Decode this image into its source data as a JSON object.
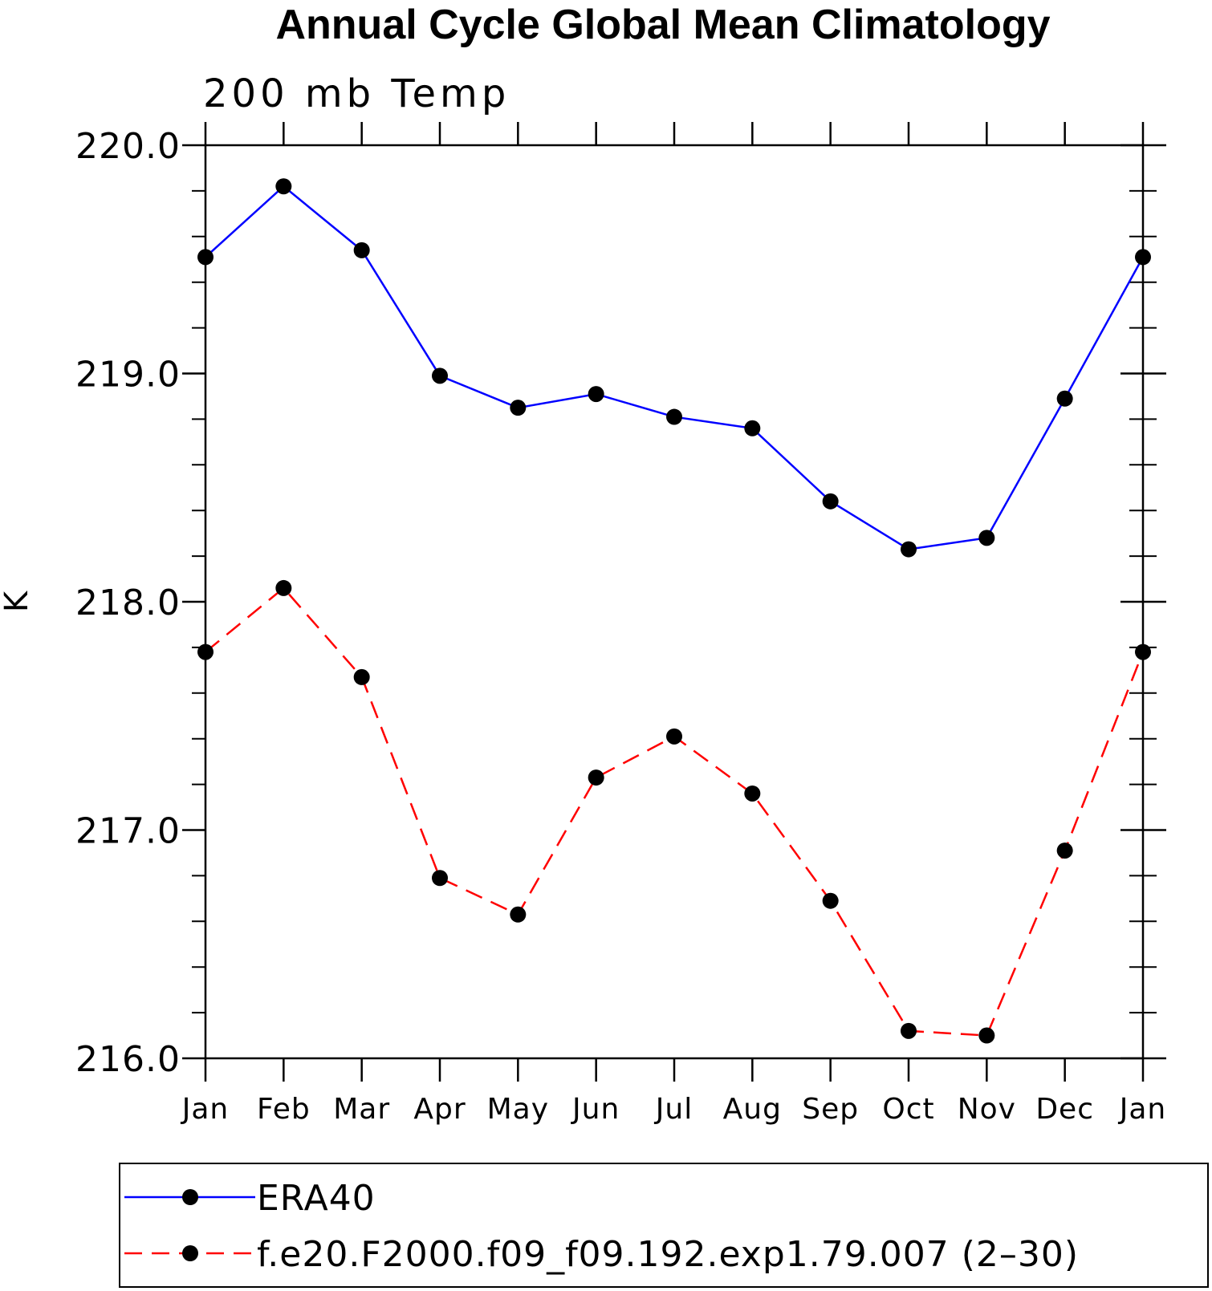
{
  "chart_data": {
    "type": "line",
    "title": "Annual Cycle Global Mean Climatology",
    "subtitle": "200 mb Temp",
    "xlabel": "",
    "ylabel": "K",
    "categories": [
      "Jan",
      "Feb",
      "Mar",
      "Apr",
      "May",
      "Jun",
      "Jul",
      "Aug",
      "Sep",
      "Oct",
      "Nov",
      "Dec",
      "Jan"
    ],
    "ylim": [
      216.0,
      220.0
    ],
    "yticks": [
      "216.0",
      "217.0",
      "218.0",
      "219.0",
      "220.0"
    ],
    "y_minor_step": 0.2,
    "grid": false,
    "legend_position": "bottom",
    "series": [
      {
        "name": "ERA40",
        "color": "#0000ff",
        "line_style": "solid",
        "marker": "filled-circle",
        "values": [
          219.51,
          219.82,
          219.54,
          218.99,
          218.85,
          218.91,
          218.81,
          218.76,
          218.44,
          218.23,
          218.28,
          218.89,
          219.51
        ]
      },
      {
        "name": "f.e20.F2000.f09_f09.192.exp1.79.007 (2–30)",
        "color": "#ff0000",
        "line_style": "dashed",
        "marker": "filled-circle",
        "values": [
          217.78,
          218.06,
          217.67,
          216.79,
          216.63,
          217.23,
          217.41,
          217.16,
          216.69,
          216.12,
          216.1,
          216.91,
          217.78
        ]
      }
    ]
  }
}
